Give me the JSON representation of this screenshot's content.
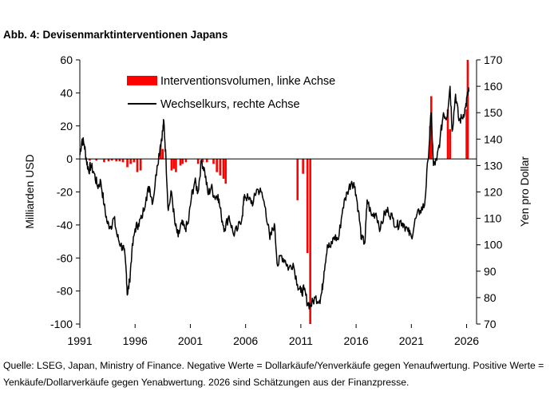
{
  "figure": {
    "title": "Abb. 4: Devisenmarktinterventionen Japans",
    "caption": "Quelle: LSEG, Japan, Ministry of Finance. Negative Werte = Dollarkäufe/Yenverkäufe gegen Yenaufwertung. Positive Werte = Yenkäufe/Dollarverkäufe gegen Yenabwertung. 2026 sind Schätzungen aus der Finanzpresse."
  },
  "colors": {
    "interventions": "#ff0000",
    "exchange_rate": "#000000",
    "axis": "#000000"
  },
  "chart_data": {
    "type": "bar+line",
    "legend": {
      "placement": "top-center",
      "entries": [
        "Interventionsvolumen, linke Achse",
        "Wechselkurs, rechte Achse"
      ]
    },
    "ylabel_left": "Milliarden USD",
    "ylabel_right": "Yen pro Dollar",
    "ylim_left": [
      -100,
      60
    ],
    "ylim_right": [
      70,
      170
    ],
    "xlim": [
      1991,
      2026.9
    ],
    "grid": false,
    "x_ticks": [
      "1991",
      "1996",
      "2001",
      "2006",
      "2011",
      "2016",
      "2021",
      "2026"
    ],
    "y_left_ticks": [
      "60",
      "40",
      "20",
      "0",
      "-20",
      "-40",
      "-60",
      "-80",
      "-100"
    ],
    "y_right_ticks": [
      "170",
      "160",
      "150",
      "140",
      "130",
      "120",
      "110",
      "100",
      "90",
      "80",
      "70"
    ],
    "series": [
      {
        "name": "Interventionsvolumen, linke Achse",
        "kind": "bar",
        "axis": "left",
        "x": [
          1991.9,
          1992.5,
          1993.2,
          1993.6,
          1993.9,
          1994.3,
          1994.6,
          1994.9,
          1995.3,
          1995.6,
          1995.9,
          1996.2,
          1996.5,
          1998.3,
          1998.5,
          1999.3,
          1999.5,
          1999.7,
          2000.1,
          2000.3,
          2000.6,
          2001.7,
          2002.1,
          2002.5,
          2003.1,
          2003.4,
          2003.7,
          2004.0,
          2004.2,
          2010.7,
          2011.2,
          2011.6,
          2011.85,
          2022.7,
          2022.8,
          2024.3,
          2024.5,
          2026.0,
          2026.1
        ],
        "values": [
          -1,
          -1,
          -2,
          -1.5,
          -1,
          -1.5,
          -1.5,
          -2,
          -5,
          -3,
          -2,
          -8,
          -7,
          8,
          6,
          -7,
          -6,
          -8,
          -4,
          -3,
          -2,
          -3,
          -2,
          -2,
          -3,
          -8,
          -10,
          -12,
          -15,
          -25,
          -9,
          -57,
          -100,
          20,
          38,
          30,
          18,
          30,
          60
        ]
      },
      {
        "name": "Wechselkurs, rechte Achse",
        "kind": "line",
        "axis": "right",
        "x": [
          1991.0,
          1991.2,
          1991.4,
          1991.6,
          1991.8,
          1992.0,
          1992.3,
          1992.6,
          1992.9,
          1993.2,
          1993.5,
          1993.8,
          1994.1,
          1994.4,
          1994.7,
          1995.0,
          1995.2,
          1995.3,
          1995.5,
          1995.7,
          1996.0,
          1996.3,
          1996.6,
          1997.0,
          1997.3,
          1997.6,
          1998.0,
          1998.3,
          1998.5,
          1998.6,
          1998.8,
          1999.0,
          1999.3,
          1999.6,
          1999.9,
          2000.2,
          2000.5,
          2000.8,
          2001.1,
          2001.4,
          2001.7,
          2002.0,
          2002.3,
          2002.6,
          2002.9,
          2003.2,
          2003.5,
          2003.8,
          2004.1,
          2004.5,
          2004.9,
          2005.3,
          2005.7,
          2005.9,
          2006.3,
          2006.7,
          2007.0,
          2007.4,
          2007.8,
          2008.2,
          2008.6,
          2008.9,
          2009.2,
          2009.6,
          2009.9,
          2010.3,
          2010.7,
          2011.0,
          2011.3,
          2011.6,
          2011.9,
          2012.3,
          2012.7,
          2012.9,
          2013.1,
          2013.4,
          2013.7,
          2014.0,
          2014.4,
          2014.8,
          2015.2,
          2015.6,
          2015.9,
          2016.2,
          2016.5,
          2016.8,
          2017.0,
          2017.4,
          2017.8,
          2018.2,
          2018.6,
          2018.9,
          2019.3,
          2019.7,
          2020.0,
          2020.3,
          2020.7,
          2021.0,
          2021.4,
          2021.8,
          2022.2,
          2022.5,
          2022.8,
          2023.0,
          2023.3,
          2023.6,
          2023.9,
          2024.2,
          2024.5,
          2024.7,
          2025.0,
          2025.3,
          2025.6,
          2025.9,
          2026.1,
          2026.2
        ],
        "values": [
          134,
          140,
          138,
          132,
          128,
          130,
          127,
          122,
          124,
          115,
          108,
          107,
          110,
          103,
          100,
          98,
          90,
          81,
          86,
          97,
          106,
          108,
          110,
          118,
          122,
          116,
          130,
          138,
          143,
          147,
          132,
          113,
          120,
          108,
          103,
          108,
          106,
          108,
          118,
          124,
          120,
          132,
          128,
          119,
          122,
          118,
          119,
          111,
          106,
          111,
          104,
          106,
          111,
          119,
          117,
          116,
          121,
          120,
          114,
          102,
          108,
          92,
          96,
          94,
          91,
          93,
          85,
          82,
          83,
          78,
          77,
          80,
          79,
          82,
          90,
          100,
          99,
          103,
          102,
          114,
          120,
          124,
          122,
          113,
          102,
          101,
          117,
          111,
          112,
          106,
          112,
          113,
          110,
          107,
          109,
          108,
          105,
          103,
          110,
          113,
          115,
          132,
          150,
          130,
          132,
          140,
          150,
          148,
          160,
          143,
          157,
          147,
          148,
          152,
          157,
          158
        ]
      }
    ]
  }
}
